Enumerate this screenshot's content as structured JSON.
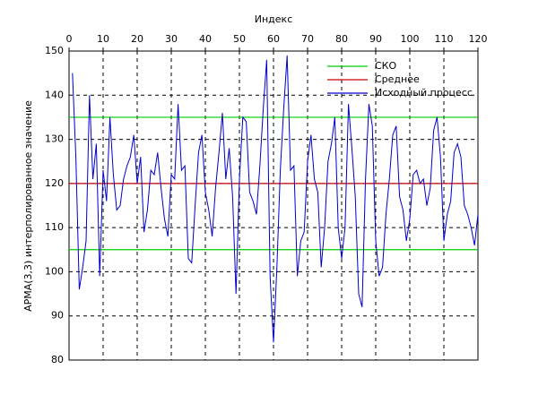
{
  "chart_data": {
    "type": "line",
    "xlabel": "Индекс",
    "ylabel": "АРМА(3,3) интерполированное значение",
    "xlim": [
      0,
      120
    ],
    "xticks": [
      0,
      10,
      20,
      30,
      40,
      50,
      60,
      70,
      80,
      90,
      100,
      110,
      120
    ],
    "ylim": [
      80,
      150
    ],
    "yticks": [
      80,
      90,
      100,
      110,
      120,
      130,
      140,
      150
    ],
    "grid": true,
    "legend": "upper right",
    "hlines": [
      {
        "name": "СКО",
        "color": "#00cc00",
        "values": [
          135,
          105
        ]
      },
      {
        "name": "Среднее",
        "color": "#cc0000",
        "values": [
          120
        ]
      }
    ],
    "series": [
      {
        "name": "Исходный процесс",
        "color": "#0000cc",
        "x": [
          1,
          2,
          3,
          4,
          5,
          6,
          7,
          8,
          9,
          10,
          11,
          12,
          13,
          14,
          15,
          16,
          17,
          18,
          19,
          20,
          21,
          22,
          23,
          24,
          25,
          26,
          27,
          28,
          29,
          30,
          31,
          32,
          33,
          34,
          35,
          36,
          37,
          38,
          39,
          40,
          41,
          42,
          43,
          44,
          45,
          46,
          47,
          48,
          49,
          50,
          51,
          52,
          53,
          54,
          55,
          56,
          57,
          58,
          59,
          60,
          61,
          62,
          63,
          64,
          65,
          66,
          67,
          68,
          69,
          70,
          71,
          72,
          73,
          74,
          75,
          76,
          77,
          78,
          79,
          80,
          81,
          82,
          83,
          84,
          85,
          86,
          87,
          88,
          89,
          90,
          91,
          92,
          93,
          94,
          95,
          96,
          97,
          98,
          99,
          100,
          101,
          102,
          103,
          104,
          105,
          106,
          107,
          108,
          109,
          110,
          111,
          112,
          113,
          114,
          115,
          116,
          117,
          118,
          119,
          120
        ],
        "values": [
          145,
          126,
          96,
          101,
          107,
          140,
          121,
          129,
          99,
          123,
          116,
          135,
          122,
          114,
          115,
          121,
          124,
          126,
          131,
          120,
          126,
          109,
          114,
          123,
          122,
          127,
          119,
          112,
          108,
          122,
          121,
          138,
          123,
          124,
          103,
          102,
          115,
          127,
          131,
          118,
          114,
          108,
          119,
          127,
          136,
          121,
          128,
          117,
          95,
          121,
          135,
          134,
          118,
          116,
          113,
          124,
          137,
          148,
          99,
          84,
          101,
          123,
          137,
          149,
          123,
          124,
          99,
          107,
          109,
          125,
          131,
          121,
          118,
          101,
          110,
          125,
          129,
          135,
          110,
          103,
          110,
          138,
          128,
          117,
          95,
          92,
          121,
          138,
          133,
          107,
          99,
          101,
          113,
          121,
          131,
          133,
          117,
          114,
          107,
          112,
          122,
          123,
          120,
          121,
          115,
          119,
          132,
          135,
          126,
          107,
          113,
          116,
          127,
          129,
          126,
          115,
          113,
          110,
          106,
          113
        ]
      }
    ]
  }
}
